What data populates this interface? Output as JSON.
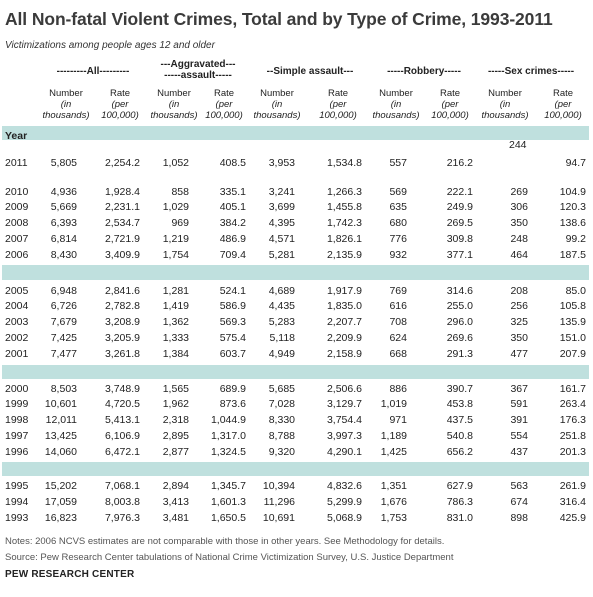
{
  "title": "All Non-fatal Violent Crimes, Total and by Type of Crime, 1993-2011",
  "subtitle": "Victimizations among people ages 12 and older",
  "groups": [
    {
      "label": "---------All---------"
    },
    {
      "label": "---Aggravated---\n-----assault-----"
    },
    {
      "label": "--Simple assault---"
    },
    {
      "label": "-----Robbery-----"
    },
    {
      "label": "-----Sex crimes-----"
    }
  ],
  "subheaders": {
    "number": "Number\n(in\nthousands)",
    "rate": "Rate\n(per\n100,000)"
  },
  "year_label": "Year",
  "sex_crimes_2011_number": "244",
  "rows": [
    {
      "year": "2011",
      "v": [
        "5,805",
        "2,254.2",
        "1,052",
        "408.5",
        "3,953",
        "1,534.8",
        "557",
        "216.2",
        "",
        "94.7"
      ]
    },
    {
      "year": "2010",
      "v": [
        "4,936",
        "1,928.4",
        "858",
        "335.1",
        "3,241",
        "1,266.3",
        "569",
        "222.1",
        "269",
        "104.9"
      ]
    },
    {
      "year": "2009",
      "v": [
        "5,669",
        "2,231.1",
        "1,029",
        "405.1",
        "3,699",
        "1,455.8",
        "635",
        "249.9",
        "306",
        "120.3"
      ]
    },
    {
      "year": "2008",
      "v": [
        "6,393",
        "2,534.7",
        "969",
        "384.2",
        "4,395",
        "1,742.3",
        "680",
        "269.5",
        "350",
        "138.6"
      ]
    },
    {
      "year": "2007",
      "v": [
        "6,814",
        "2,721.9",
        "1,219",
        "486.9",
        "4,571",
        "1,826.1",
        "776",
        "309.8",
        "248",
        "99.2"
      ]
    },
    {
      "year": "2006",
      "v": [
        "8,430",
        "3,409.9",
        "1,754",
        "709.4",
        "5,281",
        "2,135.9",
        "932",
        "377.1",
        "464",
        "187.5"
      ]
    },
    {
      "year": "2005",
      "v": [
        "6,948",
        "2,841.6",
        "1,281",
        "524.1",
        "4,689",
        "1,917.9",
        "769",
        "314.6",
        "208",
        "85.0"
      ]
    },
    {
      "year": "2004",
      "v": [
        "6,726",
        "2,782.8",
        "1,419",
        "586.9",
        "4,435",
        "1,835.0",
        "616",
        "255.0",
        "256",
        "105.8"
      ]
    },
    {
      "year": "2003",
      "v": [
        "7,679",
        "3,208.9",
        "1,362",
        "569.3",
        "5,283",
        "2,207.7",
        "708",
        "296.0",
        "325",
        "135.9"
      ]
    },
    {
      "year": "2002",
      "v": [
        "7,425",
        "3,205.9",
        "1,333",
        "575.4",
        "5,118",
        "2,209.9",
        "624",
        "269.6",
        "350",
        "151.0"
      ]
    },
    {
      "year": "2001",
      "v": [
        "7,477",
        "3,261.8",
        "1,384",
        "603.7",
        "4,949",
        "2,158.9",
        "668",
        "291.3",
        "477",
        "207.9"
      ]
    },
    {
      "year": "2000",
      "v": [
        "8,503",
        "3,748.9",
        "1,565",
        "689.9",
        "5,685",
        "2,506.6",
        "886",
        "390.7",
        "367",
        "161.7"
      ]
    },
    {
      "year": "1999",
      "v": [
        "10,601",
        "4,720.5",
        "1,962",
        "873.6",
        "7,028",
        "3,129.7",
        "1,019",
        "453.8",
        "591",
        "263.4"
      ]
    },
    {
      "year": "1998",
      "v": [
        "12,011",
        "5,413.1",
        "2,318",
        "1,044.9",
        "8,330",
        "3,754.4",
        "971",
        "437.5",
        "391",
        "176.3"
      ]
    },
    {
      "year": "1997",
      "v": [
        "13,425",
        "6,106.9",
        "2,895",
        "1,317.0",
        "8,788",
        "3,997.3",
        "1,189",
        "540.8",
        "554",
        "251.8"
      ]
    },
    {
      "year": "1996",
      "v": [
        "14,060",
        "6,472.1",
        "2,877",
        "1,324.5",
        "9,320",
        "4,290.1",
        "1,425",
        "656.2",
        "437",
        "201.3"
      ]
    },
    {
      "year": "1995",
      "v": [
        "15,202",
        "7,068.1",
        "2,894",
        "1,345.7",
        "10,394",
        "4,832.6",
        "1,351",
        "627.9",
        "563",
        "261.9"
      ]
    },
    {
      "year": "1994",
      "v": [
        "17,059",
        "8,003.8",
        "3,413",
        "1,601.3",
        "11,296",
        "5,299.9",
        "1,676",
        "786.3",
        "674",
        "316.4"
      ]
    },
    {
      "year": "1993",
      "v": [
        "16,823",
        "7,976.3",
        "3,481",
        "1,650.5",
        "10,691",
        "5,068.9",
        "1,753",
        "831.0",
        "898",
        "425.9"
      ]
    }
  ],
  "notes": "Notes: 2006 NCVS estimates are not comparable with those in other years. See Methodology for details.",
  "source": "Source: Pew Research Center tabulations of National Crime Victimization Survey, U.S. Justice Department",
  "brand": "PEW RESEARCH CENTER"
}
